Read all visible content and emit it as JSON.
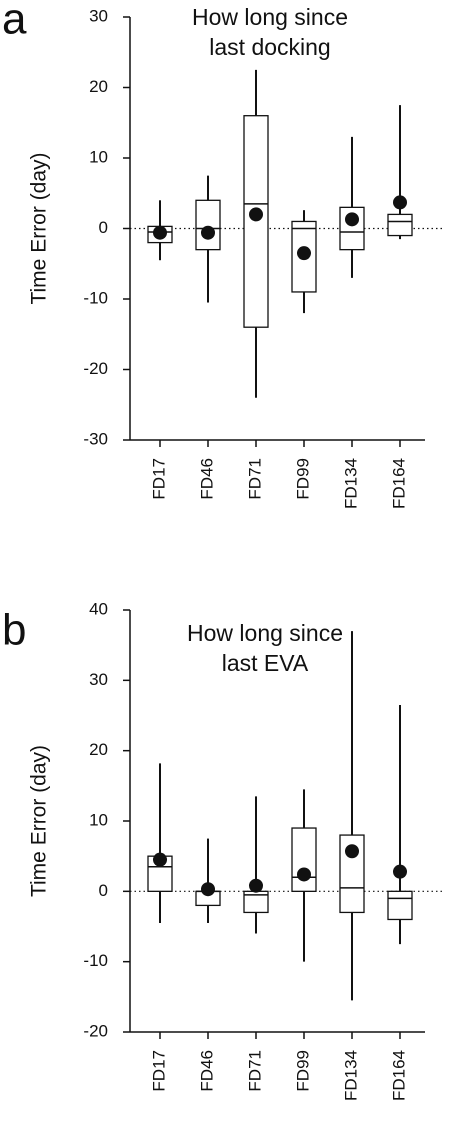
{
  "chart_data": [
    {
      "type": "box",
      "panel_label": "a",
      "title": "How long since last docking",
      "ylabel": "Time Error (day)",
      "categories": [
        "FD17",
        "FD46",
        "FD71",
        "FD99",
        "FD134",
        "FD164"
      ],
      "whisker_high": [
        4,
        7.5,
        22.5,
        2.6,
        13,
        17.5
      ],
      "q3": [
        0.3,
        4,
        16,
        1,
        3,
        2
      ],
      "median": [
        -0.5,
        0,
        3.5,
        0,
        -0.5,
        1
      ],
      "q1": [
        -2,
        -3,
        -14,
        -9,
        -3,
        -1
      ],
      "whisker_low": [
        -4.5,
        -10.5,
        -24,
        -12,
        -7,
        -1.5
      ],
      "mean": [
        -0.6,
        -0.6,
        2,
        -3.5,
        1.3,
        3.7
      ],
      "reference_line": 0,
      "ylim": [
        -30,
        30
      ],
      "yticks": [
        -30,
        -20,
        -10,
        0,
        10,
        20,
        30
      ]
    },
    {
      "type": "box",
      "panel_label": "b",
      "title": "How long since last EVA",
      "ylabel": "Time Error (day)",
      "categories": [
        "FD17",
        "FD46",
        "FD71",
        "FD99",
        "FD134",
        "FD164"
      ],
      "whisker_high": [
        18.2,
        7.5,
        13.5,
        14.5,
        37,
        26.5
      ],
      "q3": [
        5,
        0,
        0,
        9,
        8,
        0
      ],
      "median": [
        3.5,
        0,
        -0.5,
        2,
        0.5,
        -1
      ],
      "q1": [
        0,
        -2,
        -3,
        0,
        -3,
        -4
      ],
      "whisker_low": [
        -4.5,
        -4.5,
        -6,
        -10,
        -15.5,
        -7.5
      ],
      "mean": [
        4.5,
        0.3,
        0.8,
        2.4,
        5.7,
        2.8
      ],
      "reference_line": 0,
      "ylim": [
        -20,
        40
      ],
      "yticks": [
        -20,
        -10,
        0,
        10,
        20,
        30,
        40
      ]
    }
  ]
}
